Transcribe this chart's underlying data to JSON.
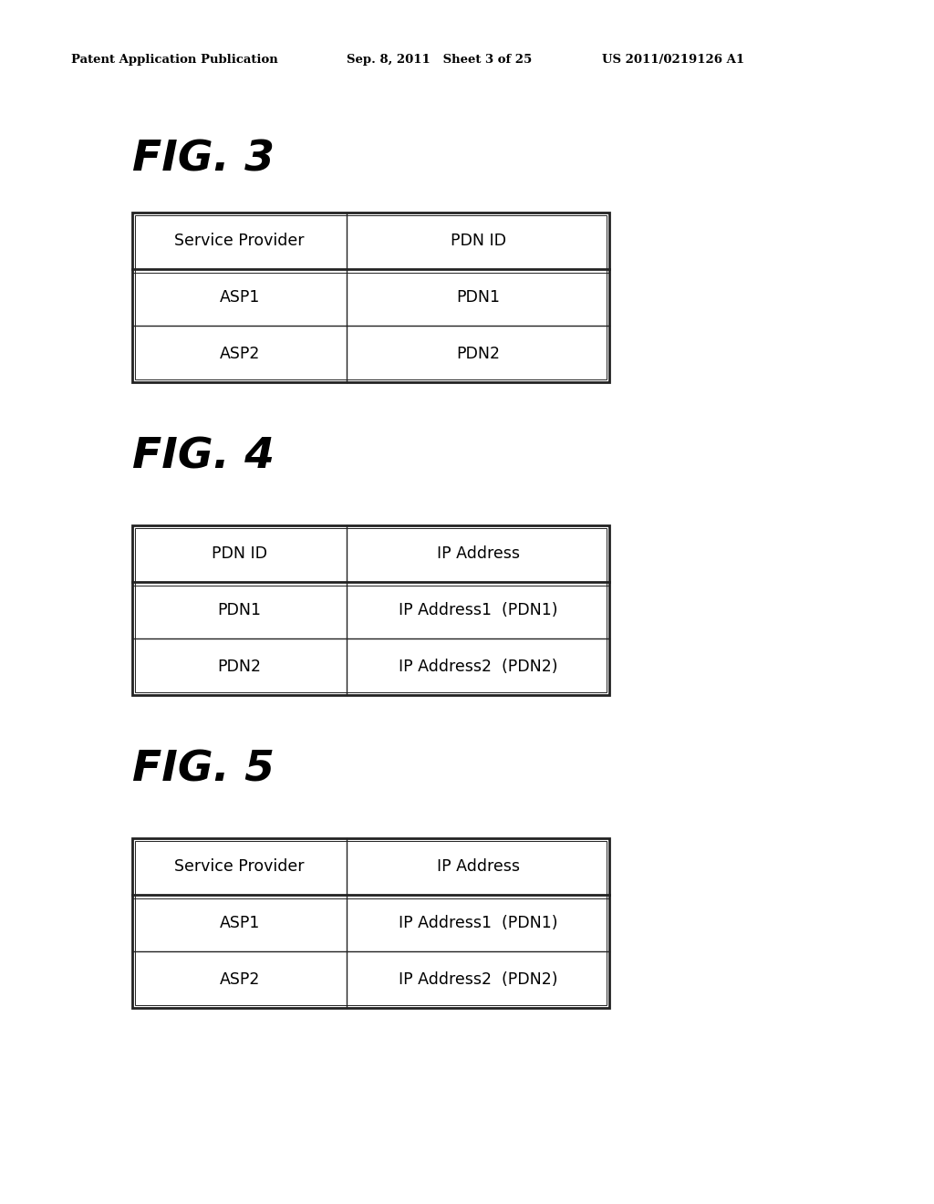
{
  "header_left": "Patent Application Publication",
  "header_mid": "Sep. 8, 2011   Sheet 3 of 25",
  "header_right": "US 2011/0219126 A1",
  "bg_color": "#ffffff",
  "fig3": {
    "title": "FIG. 3",
    "col1_header": "Service Provider",
    "col2_header": "PDN ID",
    "rows": [
      [
        "ASP1",
        "PDN1"
      ],
      [
        "ASP2",
        "PDN2"
      ]
    ]
  },
  "fig4": {
    "title": "FIG. 4",
    "col1_header": "PDN ID",
    "col2_header": "IP Address",
    "rows": [
      [
        "PDN1",
        "IP Address1  (PDN1)"
      ],
      [
        "PDN2",
        "IP Address2  (PDN2)"
      ]
    ]
  },
  "fig5": {
    "title": "FIG. 5",
    "col1_header": "Service Provider",
    "col2_header": "IP Address",
    "rows": [
      [
        "ASP1",
        "IP Address1  (PDN1)"
      ],
      [
        "ASP2",
        "IP Address2  (PDN2)"
      ]
    ]
  },
  "border_color": "#222222",
  "text_color": "#000000",
  "header_fontsize": 9.5,
  "title_fontsize": 34,
  "cell_fontsize": 12.5
}
